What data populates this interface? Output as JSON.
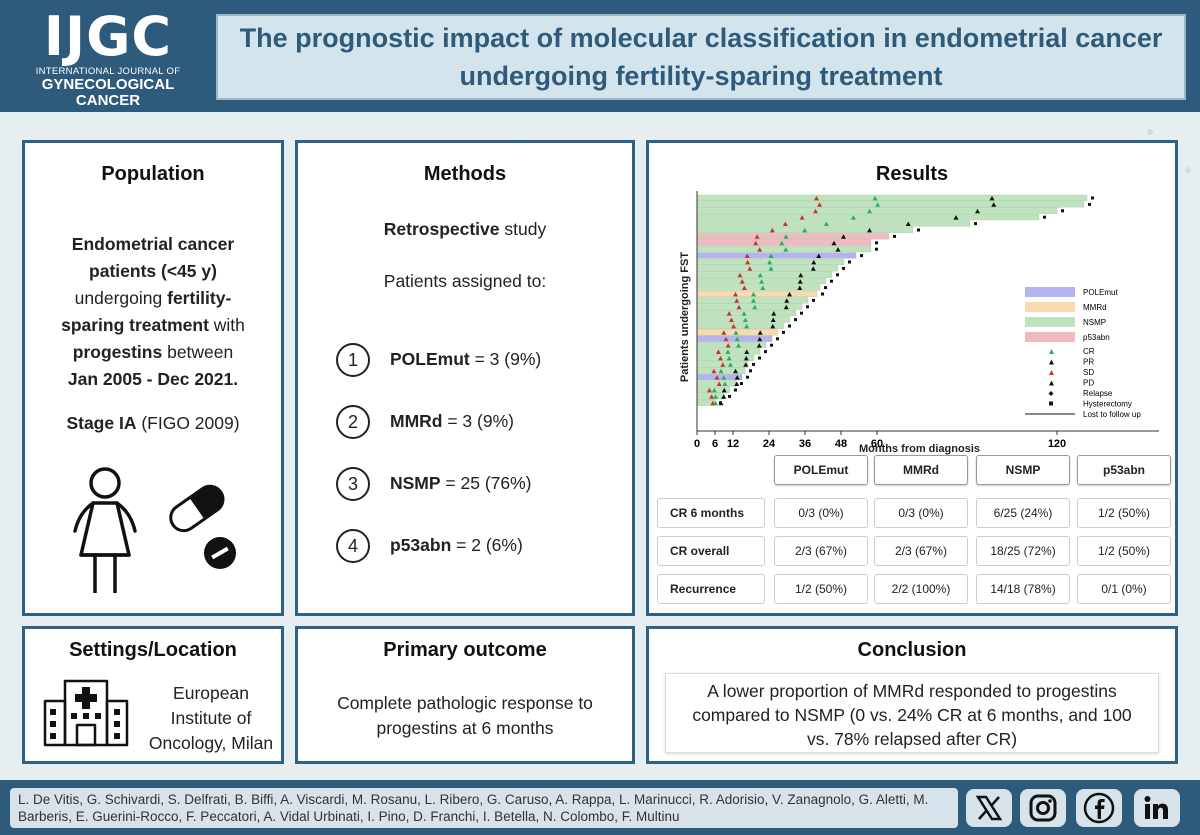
{
  "logo": {
    "acronym": "IJGC",
    "line1": "INTERNATIONAL JOURNAL OF",
    "line2": "GYNECOLOGICAL",
    "line3": "CANCER"
  },
  "title": {
    "line1": "The prognostic impact of molecular classification in endometrial cancer",
    "line2": "undergoing fertility-sparing treatment"
  },
  "population": {
    "heading": "Population",
    "text": [
      [
        {
          "t": "Endometrial cancer",
          "b": true
        }
      ],
      [
        {
          "t": "patients (<45 y)",
          "b": true
        }
      ],
      [
        {
          "t": "undergoing ",
          "b": false
        },
        {
          "t": "fertility-",
          "b": true
        }
      ],
      [
        {
          "t": "sparing treatment",
          "b": true
        },
        {
          "t": " with",
          "b": false
        }
      ],
      [
        {
          "t": "progestins",
          "b": true
        },
        {
          "t": " between",
          "b": false
        }
      ],
      [
        {
          "t": "Jan 2005 - Dec 2021.",
          "b": true
        }
      ]
    ],
    "stage": [
      {
        "t": "Stage IA",
        "b": true
      },
      {
        "t": " (FIGO 2009)",
        "b": false
      }
    ]
  },
  "methods": {
    "heading": "Methods",
    "study_bold": "Retrospective",
    "study_rest": " study",
    "assigned": "Patients assigned to:",
    "groups": [
      {
        "n": "1",
        "name": "POLEmut",
        "value": " = 3 (9%)"
      },
      {
        "n": "2",
        "name": "MMRd",
        "value": " = 3 (9%)"
      },
      {
        "n": "3",
        "name": "NSMP",
        "value": " = 25 (76%)"
      },
      {
        "n": "4",
        "name": "p53abn",
        "value": " = 2 (6%)"
      }
    ]
  },
  "results": {
    "heading": "Results",
    "chart": {
      "ylabel": "Patients undergoing FST",
      "xlabel": "Months from diagnosis",
      "ticks": [
        "0",
        "6",
        "12",
        "24",
        "36",
        "48",
        "60",
        "120"
      ],
      "legend": [
        "POLEmut",
        "MMRd",
        "NSMP",
        "p53abn",
        "CR",
        "PR",
        "SD",
        "PD",
        "Relapse",
        "Hysterectomy",
        "Lost to follow up"
      ]
    },
    "table": {
      "columns": [
        "POLEmut",
        "MMRd",
        "NSMP",
        "p53abn"
      ],
      "rows": [
        {
          "label": "CR 6 months",
          "values": [
            "0/3 (0%)",
            "0/3 (0%)",
            "6/25 (24%)",
            "1/2 (50%)"
          ]
        },
        {
          "label": "CR overall",
          "values": [
            "2/3 (67%)",
            "2/3 (67%)",
            "18/25 (72%)",
            "1/2 (50%)"
          ]
        },
        {
          "label": "Recurrence",
          "values": [
            "1/2 (50%)",
            "2/2 (100%)",
            "14/18 (78%)",
            "0/1 (0%)"
          ]
        }
      ]
    }
  },
  "settings": {
    "heading": "Settings/Location",
    "lines": [
      "European",
      "Institute of",
      "Oncology, Milan"
    ]
  },
  "outcome": {
    "heading": "Primary outcome",
    "lines": [
      "Complete pathologic response to",
      "progestins at 6 months"
    ]
  },
  "conclusion": {
    "heading": "Conclusion",
    "lines": [
      "A lower proportion of MMRd responded to progestins",
      "compared to NSMP (0 vs. 24% CR at 6 months, and 100",
      "vs. 78% relapsed after CR)"
    ]
  },
  "footer": {
    "authors": "L. De Vitis, G. Schivardi, S. Delfrati, B. Biffi, A. Viscardi, M. Rosanu, L. Ribero, G. Caruso, A. Rappa, L. Marinucci, R. Adorisio, V. Zanagnolo, G. Aletti, M. Barberis, E. Guerini-Rocco, F. Peccatori, A. Vidal Urbinati, I. Pino, D. Franchi, I. Betella, N. Colombo, F. Multinu",
    "social": [
      "X",
      "Instagram",
      "Facebook",
      "LinkedIn"
    ]
  },
  "colors": {
    "header": "#2e5a7c",
    "title_text": "#2e5a7c",
    "border": "#2e6184",
    "polemut": "#b3b3f0",
    "mmrd": "#f8d9b0",
    "nsmp": "#bfe3bf",
    "p53abn": "#f1b9c1"
  }
}
